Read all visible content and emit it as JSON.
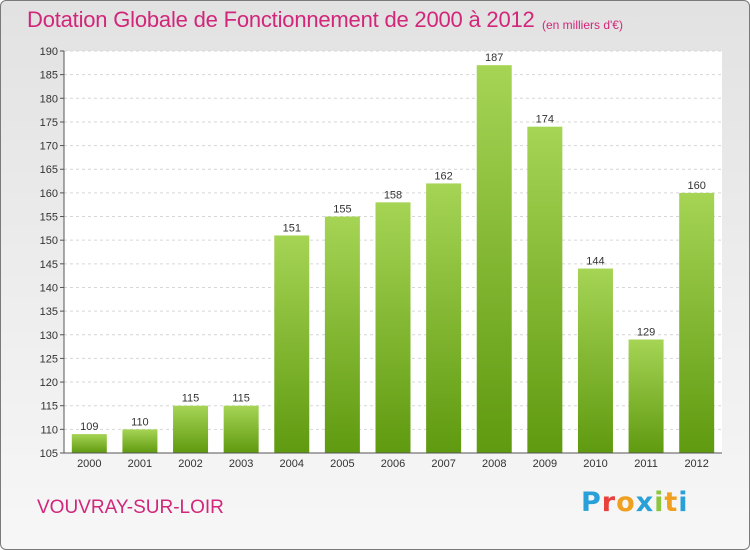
{
  "header": {
    "title": "Dotation Globale de Fonctionnement de 2000 à 2012",
    "unit": "(en milliers d'€)"
  },
  "footer": {
    "commune": "VOUVRAY-SUR-LOIR",
    "logo": "Proxiti",
    "logo_colors": [
      "#2aa0d8",
      "#e8413c",
      "#f0a020",
      "#2aa0d8",
      "#8cc63f",
      "#f0a020",
      "#2aa0d8"
    ]
  },
  "colors": {
    "bar_top": "#a6d455",
    "bar_bottom": "#5f9a10",
    "text_accent": "#d1267a"
  },
  "chart_data": {
    "type": "bar",
    "categories": [
      "2000",
      "2001",
      "2002",
      "2003",
      "2004",
      "2005",
      "2006",
      "2007",
      "2008",
      "2009",
      "2010",
      "2011",
      "2012"
    ],
    "values": [
      109,
      110,
      115,
      115,
      151,
      155,
      158,
      162,
      187,
      174,
      144,
      129,
      160
    ],
    "title": "Dotation Globale de Fonctionnement de 2000 à 2012",
    "subtitle": "(en milliers d'€)",
    "xlabel": "",
    "ylabel": "",
    "ylim": [
      105,
      190
    ],
    "yticks": [
      105,
      110,
      115,
      120,
      125,
      130,
      135,
      140,
      145,
      150,
      155,
      160,
      165,
      170,
      175,
      180,
      185,
      190
    ],
    "grid": true,
    "legend": "none"
  }
}
